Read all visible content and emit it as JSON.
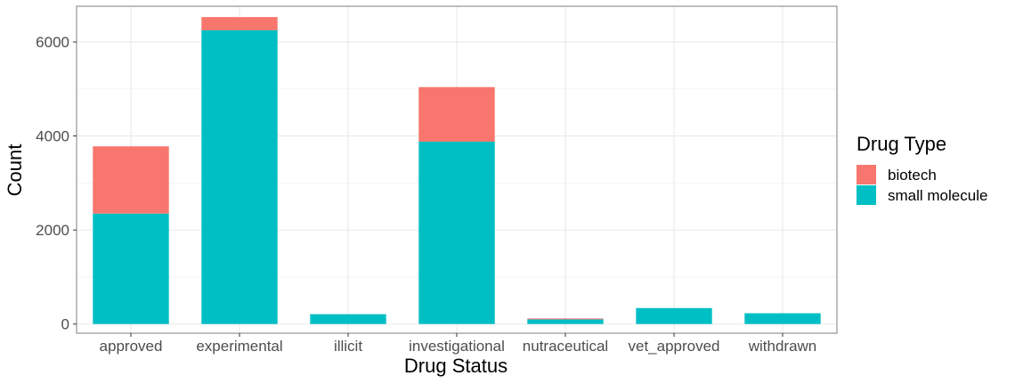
{
  "chart_data": {
    "type": "bar",
    "stacked": true,
    "title": "",
    "xlabel": "Drug Status",
    "ylabel": "Count",
    "categories": [
      "approved",
      "experimental",
      "illicit",
      "investigational",
      "nutraceutical",
      "vet_approved",
      "withdrawn"
    ],
    "series": [
      {
        "name": "small molecule",
        "color": "#00BFC4",
        "values": [
          2350,
          6250,
          210,
          3880,
          100,
          340,
          230
        ]
      },
      {
        "name": "biotech",
        "color": "#F8766D",
        "values": [
          1430,
          280,
          0,
          1160,
          20,
          0,
          0
        ]
      }
    ],
    "ylim": [
      -195,
      6760
    ],
    "yticks": [
      0,
      2000,
      4000,
      6000
    ],
    "grid": true,
    "legend": {
      "title": "Drug Type",
      "placement": "right",
      "entries": [
        {
          "label": "biotech",
          "color": "#F8766D"
        },
        {
          "label": "small molecule",
          "color": "#00BFC4"
        }
      ]
    }
  }
}
